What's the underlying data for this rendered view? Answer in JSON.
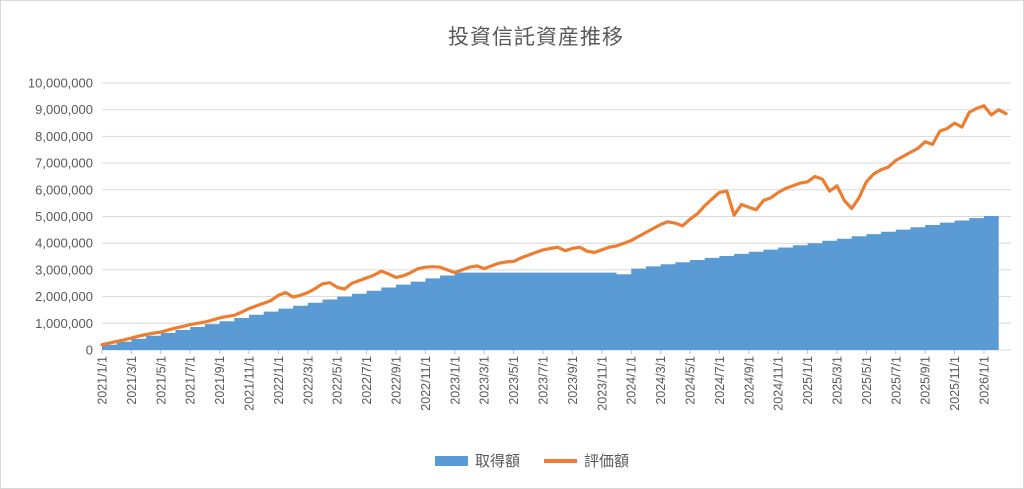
{
  "chart_data": {
    "type": "combo-bar-line",
    "title": "投資信託資産推移",
    "xlabel": "",
    "ylabel": "",
    "grid": true,
    "legend_position": "bottom-center",
    "y_axis": {
      "min": 0,
      "max": 10000000,
      "step": 1000000,
      "tick_labels": [
        "0",
        "1,000,000",
        "2,000,000",
        "3,000,000",
        "4,000,000",
        "5,000,000",
        "6,000,000",
        "7,000,000",
        "8,000,000",
        "9,000,000",
        "10,000,000"
      ]
    },
    "x_axis": {
      "start": "2021/1/1",
      "end": "2026/2",
      "tick_interval_months": 2,
      "tick_labels": [
        "2021/1/1",
        "2021/3/1",
        "2021/5/1",
        "2021/7/1",
        "2021/9/1",
        "2021/11/1",
        "2022/1/1",
        "2022/3/1",
        "2022/5/1",
        "2022/7/1",
        "2022/9/1",
        "2022/11/1",
        "2023/1/1",
        "2023/3/1",
        "2023/5/1",
        "2023/7/1",
        "2023/9/1",
        "2023/11/1",
        "2024/1/1",
        "2024/3/1",
        "2024/5/1",
        "2024/7/1",
        "2024/9/1",
        "2024/11/1",
        "2025/1/1",
        "2025/3/1",
        "2025/5/1",
        "2025/7/1",
        "2025/9/1",
        "2025/11/1",
        "2026/1/1"
      ]
    },
    "series": [
      {
        "name": "取得額",
        "type": "bar",
        "color": "#5b9bd5",
        "unit": "JPY",
        "points_per_month": 1,
        "first_month": "2021/1",
        "values": [
          200000,
          310000,
          420000,
          530000,
          640000,
          750000,
          860000,
          970000,
          1080000,
          1200000,
          1320000,
          1440000,
          1550000,
          1660000,
          1770000,
          1890000,
          2000000,
          2110000,
          2220000,
          2340000,
          2450000,
          2560000,
          2680000,
          2790000,
          2900000,
          2900000,
          2900000,
          2900000,
          2900000,
          2900000,
          2900000,
          2900000,
          2900000,
          2900000,
          2900000,
          2840000,
          3050000,
          3130000,
          3210000,
          3290000,
          3370000,
          3450000,
          3520000,
          3600000,
          3680000,
          3760000,
          3840000,
          3920000,
          4000000,
          4090000,
          4170000,
          4260000,
          4340000,
          4430000,
          4510000,
          4600000,
          4680000,
          4770000,
          4850000,
          4940000,
          5020000
        ]
      },
      {
        "name": "評価額",
        "type": "line",
        "color": "#ed7d31",
        "unit": "JPY",
        "points_per_month": 2,
        "first_month": "2021/1",
        "values": [
          200000,
          260000,
          320000,
          380000,
          450000,
          520000,
          580000,
          630000,
          670000,
          750000,
          820000,
          880000,
          950000,
          1000000,
          1050000,
          1120000,
          1200000,
          1260000,
          1300000,
          1420000,
          1550000,
          1650000,
          1750000,
          1850000,
          2050000,
          2150000,
          1980000,
          2050000,
          2150000,
          2300000,
          2480000,
          2520000,
          2350000,
          2280000,
          2500000,
          2600000,
          2700000,
          2800000,
          2950000,
          2850000,
          2720000,
          2780000,
          2900000,
          3050000,
          3100000,
          3120000,
          3100000,
          3000000,
          2900000,
          3000000,
          3100000,
          3150000,
          3050000,
          3150000,
          3250000,
          3300000,
          3320000,
          3450000,
          3550000,
          3650000,
          3750000,
          3800000,
          3850000,
          3720000,
          3800000,
          3850000,
          3700000,
          3650000,
          3750000,
          3850000,
          3900000,
          4000000,
          4100000,
          4250000,
          4400000,
          4550000,
          4700000,
          4800000,
          4750000,
          4650000,
          4900000,
          5100000,
          5400000,
          5650000,
          5900000,
          5950000,
          5050000,
          5450000,
          5350000,
          5250000,
          5600000,
          5700000,
          5900000,
          6050000,
          6150000,
          6250000,
          6300000,
          6500000,
          6400000,
          5950000,
          6150000,
          5600000,
          5300000,
          5700000,
          6300000,
          6600000,
          6750000,
          6850000,
          7100000,
          7250000,
          7400000,
          7550000,
          7800000,
          7700000,
          8200000,
          8300000,
          8500000,
          8350000,
          8900000,
          9050000,
          9150000,
          8800000,
          9000000,
          8850000
        ]
      }
    ]
  },
  "legend": {
    "items": [
      {
        "label": "取得額",
        "swatch": "bar",
        "color": "#5b9bd5"
      },
      {
        "label": "評価額",
        "swatch": "line",
        "color": "#ed7d31"
      }
    ]
  },
  "style_colors": {
    "gridline": "#d9d9d9",
    "axis_line": "#d9d9d9",
    "tick_mark": "#bfbfbf",
    "axis_text": "#595959",
    "title_text": "#595959"
  }
}
